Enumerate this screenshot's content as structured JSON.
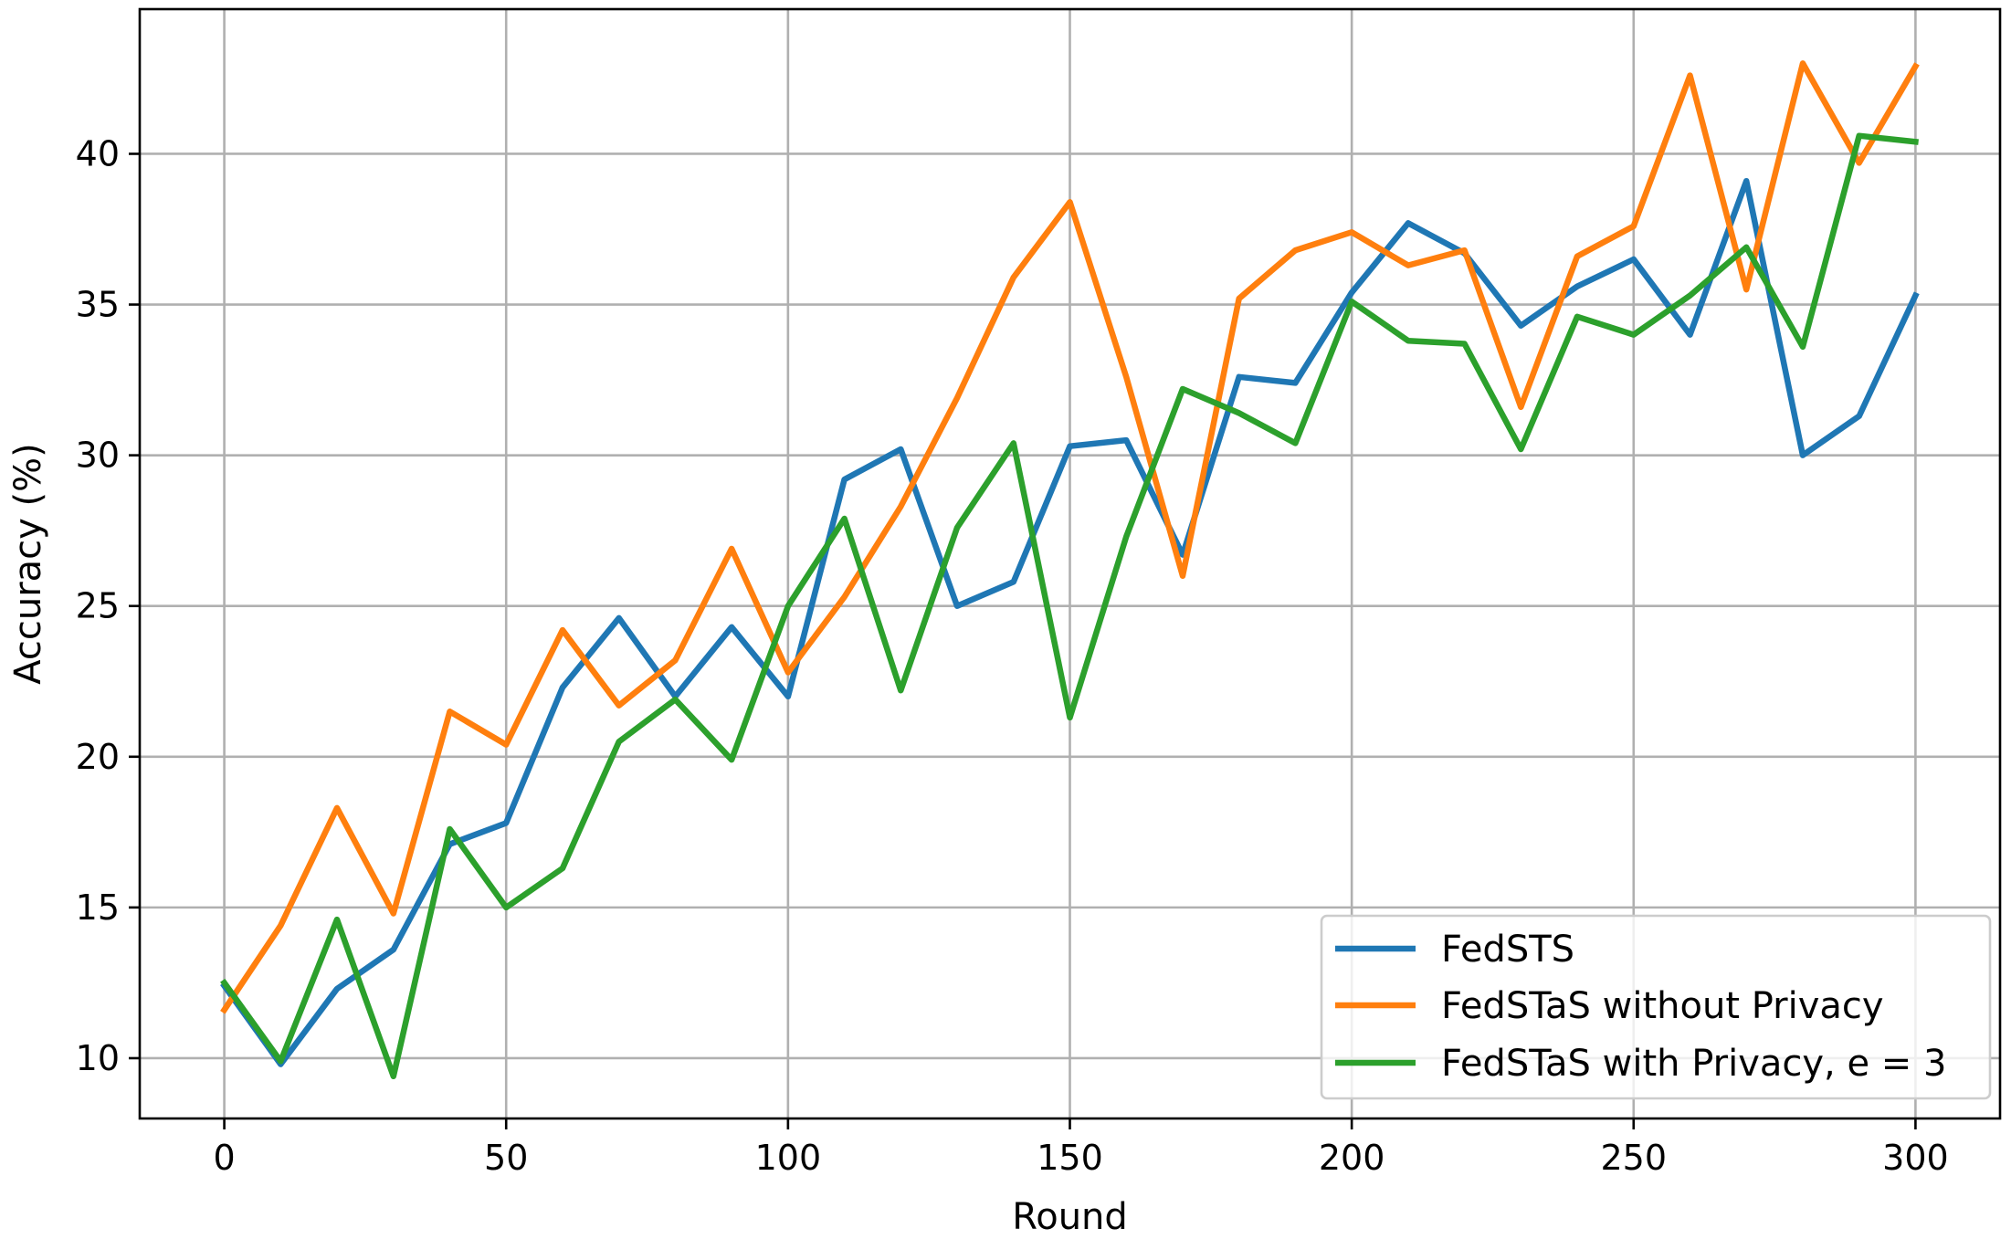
{
  "chart_data": {
    "type": "line",
    "title": "",
    "xlabel": "Round",
    "ylabel": "Accuracy (%)",
    "xlim": [
      -15,
      315
    ],
    "ylim": [
      8.0,
      44.8
    ],
    "xticks": [
      0,
      50,
      100,
      150,
      200,
      250,
      300
    ],
    "yticks": [
      10,
      15,
      20,
      25,
      30,
      35,
      40
    ],
    "grid": true,
    "legend_position": "lower right",
    "x": [
      0,
      10,
      20,
      30,
      40,
      50,
      60,
      70,
      80,
      90,
      100,
      110,
      120,
      130,
      140,
      150,
      160,
      170,
      180,
      190,
      200,
      210,
      220,
      230,
      240,
      250,
      260,
      270,
      280,
      290,
      300
    ],
    "series": [
      {
        "name": "FedSTS",
        "color": "#1f77b4",
        "values": [
          12.4,
          9.8,
          12.3,
          13.6,
          17.1,
          17.8,
          22.3,
          24.6,
          22.0,
          24.3,
          22.0,
          29.2,
          30.2,
          25.0,
          25.8,
          30.3,
          30.5,
          26.7,
          32.6,
          32.4,
          35.4,
          37.7,
          36.7,
          34.3,
          35.6,
          36.5,
          34.0,
          39.1,
          30.0,
          31.3,
          35.3
        ]
      },
      {
        "name": "FedSTaS without Privacy",
        "color": "#ff7f0e",
        "values": [
          11.6,
          14.4,
          18.3,
          14.8,
          21.5,
          20.4,
          24.2,
          21.7,
          23.2,
          26.9,
          22.8,
          25.3,
          28.3,
          31.9,
          35.9,
          38.4,
          32.6,
          26.0,
          35.2,
          36.8,
          37.4,
          36.3,
          36.8,
          31.6,
          36.6,
          37.6,
          42.6,
          35.5,
          43.0,
          39.7,
          42.9
        ]
      },
      {
        "name": "FedSTaS with Privacy, e = 3",
        "color": "#2ca02c",
        "values": [
          12.5,
          9.9,
          14.6,
          9.4,
          17.6,
          15.0,
          16.3,
          20.5,
          21.9,
          19.9,
          25.0,
          27.9,
          22.2,
          27.6,
          30.4,
          21.3,
          27.3,
          32.2,
          31.4,
          30.4,
          35.1,
          33.8,
          33.7,
          30.2,
          34.6,
          34.0,
          35.3,
          36.9,
          33.6,
          40.6,
          40.4
        ]
      }
    ]
  }
}
